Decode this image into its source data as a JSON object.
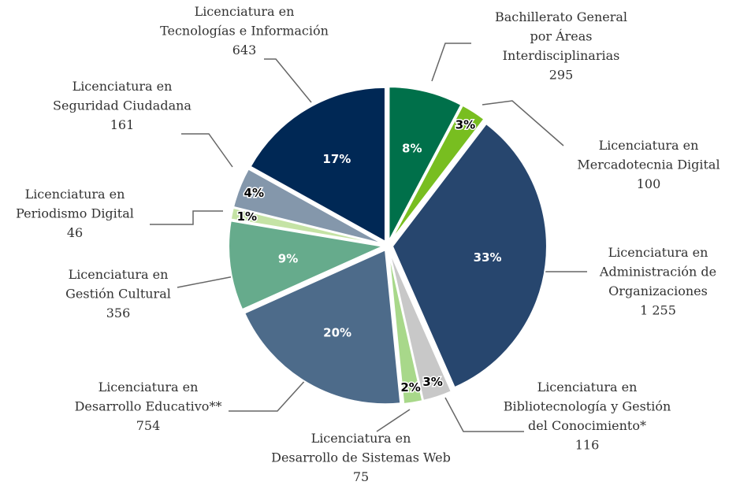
{
  "chart_data": {
    "type": "pie",
    "categories": [
      [
        "Bachillerato General",
        "por Áreas",
        "Interdisciplinarias"
      ],
      [
        "Licenciatura en",
        "Mercadotecnia Digital"
      ],
      [
        "Licenciatura en",
        "Administración de",
        "Organizaciones"
      ],
      [
        "Licenciatura en",
        "Bibliotecnología y Gestión",
        "del Conocimiento*"
      ],
      [
        "Licenciatura en",
        "Desarrollo de Sistemas Web"
      ],
      [
        "Licenciatura en",
        "Desarrollo Educativo**"
      ],
      [
        "Licenciatura en",
        "Gestión Cultural"
      ],
      [
        "Licenciatura en",
        "Periodismo Digital"
      ],
      [
        "Licenciatura en",
        "Seguridad Ciudadana"
      ],
      [
        "Licenciatura en",
        "Tecnologías e Información"
      ]
    ],
    "values": [
      295,
      100,
      1255,
      116,
      75,
      754,
      356,
      46,
      161,
      643
    ],
    "value_labels": [
      "295",
      "100",
      "1 255",
      "116",
      "75",
      "754",
      "356",
      "46",
      "161",
      "643"
    ],
    "percent_labels": [
      "8%",
      "3%",
      "33%",
      "3%",
      "2%",
      "20%",
      "9%",
      "1%",
      "4%",
      "17%"
    ],
    "colors": [
      "#00704a",
      "#78be20",
      "#27466e",
      "#c8c8c8",
      "#a8d88a",
      "#4d6b8a",
      "#66ab8c",
      "#c5e3a5",
      "#8497ab",
      "#002855"
    ]
  }
}
